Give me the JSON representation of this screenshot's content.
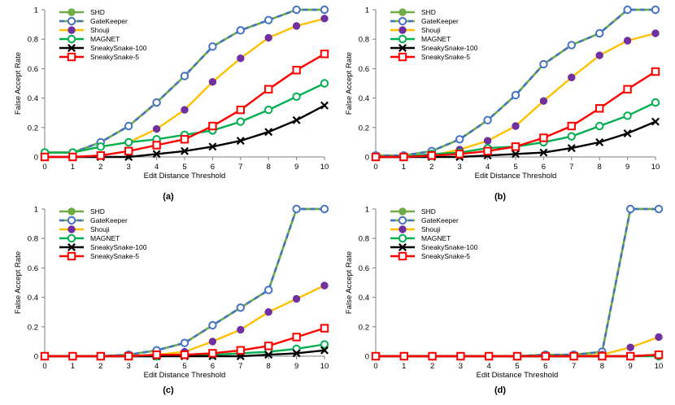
{
  "figure": {
    "panel_labels": [
      "(a)",
      "(b)",
      "(c)",
      "(d)"
    ]
  },
  "style": {
    "series": {
      "SHD": {
        "line": "#70ad47",
        "marker": "filled-circle",
        "fill": "#70ad47",
        "stroke": "#70ad47",
        "dash": "none"
      },
      "GateKeeper": {
        "line": "#4472c4",
        "line2": "#70ad47",
        "marker": "hollow-circle",
        "fill": "#ffffff",
        "stroke": "#4472c4",
        "dash": "dashed"
      },
      "Shouji": {
        "line": "#ffc000",
        "marker": "filled-circle",
        "fill": "#7030a0",
        "stroke": "#7030a0",
        "dash": "none"
      },
      "MAGNET": {
        "line": "#00b050",
        "marker": "hollow-circle",
        "fill": "#ffffff",
        "stroke": "#00b050",
        "dash": "none"
      },
      "SneakySnake-100": {
        "line": "#000000",
        "marker": "x-cross",
        "fill": "none",
        "stroke": "#000000",
        "dash": "none"
      },
      "SneakySnake-5": {
        "line": "#ff0000",
        "marker": "hollow-square",
        "fill": "#ffffff",
        "stroke": "#ff0000",
        "dash": "none"
      }
    },
    "axis_color": "#7f7f7f",
    "text_color": "#000000"
  },
  "chart_data": [
    {
      "panel": "(a)",
      "type": "line",
      "xlabel": "Edit Distance Threshold",
      "ylabel": "False Accept Rate",
      "x": [
        0,
        1,
        2,
        3,
        4,
        5,
        6,
        7,
        8,
        9,
        10
      ],
      "xticks": [
        "0",
        "1",
        "2",
        "3",
        "4",
        "5",
        "6",
        "7",
        "8",
        "9",
        "10"
      ],
      "yticks": [
        "0",
        "0.2",
        "0.4",
        "0.6",
        "0.8",
        "1"
      ],
      "ylim": [
        0,
        1
      ],
      "legend": "top-left",
      "series": [
        {
          "name": "SHD",
          "values": [
            0.03,
            0.03,
            0.1,
            0.21,
            0.37,
            0.55,
            0.75,
            0.86,
            0.93,
            1.0,
            1.0
          ]
        },
        {
          "name": "GateKeeper",
          "values": [
            0.03,
            0.03,
            0.1,
            0.21,
            0.37,
            0.55,
            0.75,
            0.86,
            0.93,
            1.0,
            1.0
          ]
        },
        {
          "name": "Shouji",
          "values": [
            0.03,
            0.03,
            0.07,
            0.1,
            0.19,
            0.32,
            0.51,
            0.67,
            0.81,
            0.89,
            0.94
          ]
        },
        {
          "name": "MAGNET",
          "values": [
            0.03,
            0.03,
            0.07,
            0.1,
            0.12,
            0.15,
            0.18,
            0.24,
            0.32,
            0.41,
            0.5
          ]
        },
        {
          "name": "SneakySnake-100",
          "values": [
            0.0,
            0.0,
            0.0,
            0.0,
            0.02,
            0.04,
            0.07,
            0.11,
            0.17,
            0.25,
            0.35
          ]
        },
        {
          "name": "SneakySnake-5",
          "values": [
            0.0,
            0.0,
            0.01,
            0.04,
            0.08,
            0.12,
            0.21,
            0.32,
            0.46,
            0.59,
            0.7
          ]
        }
      ]
    },
    {
      "panel": "(b)",
      "type": "line",
      "xlabel": "Edit Distance Threshold",
      "ylabel": "False Accept Rate",
      "x": [
        0,
        1,
        2,
        3,
        4,
        5,
        6,
        7,
        8,
        9,
        10
      ],
      "xticks": [
        "0",
        "1",
        "2",
        "3",
        "4",
        "5",
        "6",
        "7",
        "8",
        "9",
        "10"
      ],
      "yticks": [
        "0",
        "0.2",
        "0.4",
        "0.6",
        "0.8",
        "1"
      ],
      "ylim": [
        0,
        1
      ],
      "legend": "top-left",
      "series": [
        {
          "name": "SHD",
          "values": [
            0.01,
            0.01,
            0.04,
            0.12,
            0.25,
            0.42,
            0.63,
            0.76,
            0.84,
            1.0,
            1.0
          ]
        },
        {
          "name": "GateKeeper",
          "values": [
            0.01,
            0.01,
            0.04,
            0.12,
            0.25,
            0.42,
            0.63,
            0.76,
            0.84,
            1.0,
            1.0
          ]
        },
        {
          "name": "Shouji",
          "values": [
            0.0,
            0.0,
            0.01,
            0.05,
            0.11,
            0.21,
            0.38,
            0.54,
            0.69,
            0.79,
            0.84
          ]
        },
        {
          "name": "MAGNET",
          "values": [
            0.0,
            0.0,
            0.02,
            0.03,
            0.06,
            0.07,
            0.1,
            0.14,
            0.21,
            0.28,
            0.37
          ]
        },
        {
          "name": "SneakySnake-100",
          "values": [
            0.0,
            0.0,
            0.0,
            0.0,
            0.01,
            0.02,
            0.03,
            0.06,
            0.1,
            0.16,
            0.24
          ]
        },
        {
          "name": "SneakySnake-5",
          "values": [
            0.0,
            0.0,
            0.01,
            0.02,
            0.04,
            0.07,
            0.13,
            0.21,
            0.33,
            0.46,
            0.58
          ]
        }
      ]
    },
    {
      "panel": "(c)",
      "type": "line",
      "xlabel": "Edit Distance Threshold",
      "ylabel": "False Accept Rate",
      "x": [
        0,
        1,
        2,
        3,
        4,
        5,
        6,
        7,
        8,
        9,
        10
      ],
      "xticks": [
        "0",
        "1",
        "2",
        "3",
        "4",
        "5",
        "6",
        "7",
        "8",
        "9",
        "10"
      ],
      "yticks": [
        "0",
        "0.2",
        "0.4",
        "0.6",
        "0.8",
        "1"
      ],
      "ylim": [
        0,
        1
      ],
      "legend": "top-left",
      "series": [
        {
          "name": "SHD",
          "values": [
            0.0,
            0.0,
            0.0,
            0.01,
            0.04,
            0.09,
            0.21,
            0.33,
            0.45,
            1.0,
            1.0
          ]
        },
        {
          "name": "GateKeeper",
          "values": [
            0.0,
            0.0,
            0.0,
            0.01,
            0.04,
            0.09,
            0.21,
            0.33,
            0.45,
            1.0,
            1.0
          ]
        },
        {
          "name": "Shouji",
          "values": [
            0.0,
            0.0,
            0.0,
            0.0,
            0.01,
            0.03,
            0.1,
            0.18,
            0.3,
            0.39,
            0.48
          ]
        },
        {
          "name": "MAGNET",
          "values": [
            0.0,
            0.0,
            0.0,
            0.0,
            0.0,
            0.01,
            0.01,
            0.02,
            0.03,
            0.05,
            0.08
          ]
        },
        {
          "name": "SneakySnake-100",
          "values": [
            0.0,
            0.0,
            0.0,
            0.0,
            0.0,
            0.0,
            0.0,
            0.0,
            0.01,
            0.02,
            0.04
          ]
        },
        {
          "name": "SneakySnake-5",
          "values": [
            0.0,
            0.0,
            0.0,
            0.0,
            0.01,
            0.01,
            0.02,
            0.04,
            0.07,
            0.13,
            0.19
          ]
        }
      ]
    },
    {
      "panel": "(d)",
      "type": "line",
      "xlabel": "Edit Distance Threshold",
      "ylabel": "False Accept Rate",
      "x": [
        0,
        1,
        2,
        3,
        4,
        5,
        6,
        7,
        8,
        9,
        10
      ],
      "xticks": [
        "0",
        "1",
        "2",
        "3",
        "4",
        "5",
        "6",
        "7",
        "8",
        "9",
        "10"
      ],
      "yticks": [
        "0",
        "0.2",
        "0.4",
        "0.6",
        "0.8",
        "1"
      ],
      "ylim": [
        0,
        1
      ],
      "legend": "top-left",
      "series": [
        {
          "name": "SHD",
          "values": [
            0.0,
            0.0,
            0.0,
            0.0,
            0.0,
            0.0,
            0.01,
            0.01,
            0.03,
            1.0,
            1.0
          ]
        },
        {
          "name": "GateKeeper",
          "values": [
            0.0,
            0.0,
            0.0,
            0.0,
            0.0,
            0.0,
            0.01,
            0.01,
            0.03,
            1.0,
            1.0
          ]
        },
        {
          "name": "Shouji",
          "values": [
            0.0,
            0.0,
            0.0,
            0.0,
            0.0,
            0.0,
            0.0,
            0.0,
            0.01,
            0.06,
            0.13
          ]
        },
        {
          "name": "MAGNET",
          "values": [
            0.0,
            0.0,
            0.0,
            0.0,
            0.0,
            0.0,
            0.0,
            0.0,
            0.0,
            0.0,
            0.0
          ]
        },
        {
          "name": "SneakySnake-100",
          "values": [
            0.0,
            0.0,
            0.0,
            0.0,
            0.0,
            0.0,
            0.0,
            0.0,
            0.0,
            0.0,
            0.01
          ]
        },
        {
          "name": "SneakySnake-5",
          "values": [
            0.0,
            0.0,
            0.0,
            0.0,
            0.0,
            0.0,
            0.0,
            0.0,
            0.0,
            0.0,
            0.01
          ]
        }
      ]
    }
  ]
}
